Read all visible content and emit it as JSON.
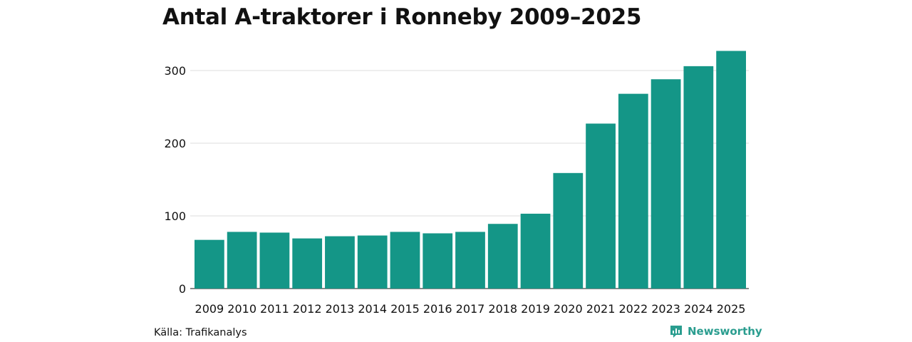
{
  "title": "Antal A-traktorer i Ronneby 2009–2025",
  "source": "Källa: Trafikanalys",
  "brand": {
    "name": "Newsworthy",
    "icon": "newsworthy-logo-icon",
    "color": "#2a9d8f"
  },
  "colors": {
    "bar": "#149687",
    "grid": "#dddddd",
    "axis": "#111111"
  },
  "chart_data": {
    "type": "bar",
    "title": "Antal A-traktorer i Ronneby 2009–2025",
    "xlabel": "",
    "ylabel": "",
    "categories": [
      "2009",
      "2010",
      "2011",
      "2012",
      "2013",
      "2014",
      "2015",
      "2016",
      "2017",
      "2018",
      "2019",
      "2020",
      "2021",
      "2022",
      "2023",
      "2024",
      "2025"
    ],
    "values": [
      67,
      78,
      77,
      69,
      72,
      73,
      78,
      76,
      78,
      89,
      103,
      159,
      227,
      268,
      288,
      306,
      327
    ],
    "yticks": [
      0,
      100,
      200,
      300
    ],
    "ylim": [
      0,
      330
    ],
    "grid": true,
    "legend": "none"
  }
}
